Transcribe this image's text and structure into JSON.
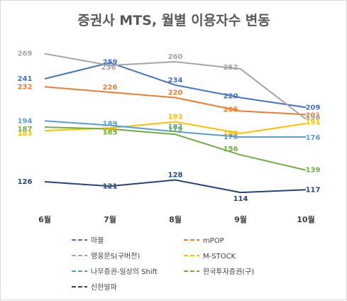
{
  "chart_data": {
    "type": "line",
    "title": "증권사 MTS, 월별 이용자수 변동",
    "categories": [
      "6월",
      "7월",
      "8월",
      "9월",
      "10월"
    ],
    "ylim": [
      100,
      280
    ],
    "grid": false,
    "legend_position": "bottom",
    "series": [
      {
        "name": "마블",
        "color": "#4472c4",
        "values": [
          241,
          259,
          234,
          220,
          209
        ]
      },
      {
        "name": "mPOP",
        "color": "#ed7d31",
        "values": [
          232,
          226,
          220,
          205,
          201
        ]
      },
      {
        "name": "영웅문S(구버전)",
        "color": "#a5a5a5",
        "values": [
          269,
          256,
          260,
          252,
          196
        ]
      },
      {
        "name": "M-STOCK",
        "color": "#ffc000",
        "values": [
          183,
          186,
          193,
          180,
          191
        ]
      },
      {
        "name": "나무증권-일상의 Shift",
        "color": "#5b9bd5",
        "values": [
          194,
          189,
          182,
          176,
          176
        ]
      },
      {
        "name": "한국투자증권(구)",
        "color": "#70ad47",
        "values": [
          187,
          185,
          179,
          156,
          139
        ]
      },
      {
        "name": "신한알파",
        "color": "#264478",
        "values": [
          126,
          121,
          128,
          114,
          117
        ]
      }
    ]
  }
}
